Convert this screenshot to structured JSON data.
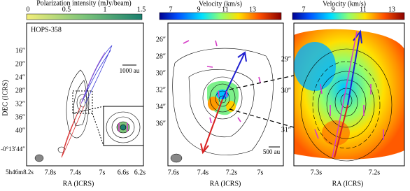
{
  "panels": [
    {
      "colorbar": {
        "label": "Polarization intensity (mJy/beam)",
        "ticks": [
          "0",
          "0.5",
          "1",
          "1.5"
        ]
      },
      "source": "HOPS-358",
      "scale_bar": "1000 au",
      "y_label": "DEC (ICRS)",
      "x_label": "RA (ICRS)",
      "y_ticks": [
        "16″",
        "20″",
        "24″",
        "28″",
        "32″",
        "36″",
        "40″",
        "-0°13′44″"
      ],
      "x_ticks": [
        "5h46m8.2s",
        "7.8s",
        "7.4s",
        "7s",
        "6.6s",
        "6.2s"
      ]
    },
    {
      "colorbar": {
        "label": "Velocity (km/s)",
        "ticks": [
          "7",
          "9",
          "11",
          "13"
        ]
      },
      "scale_bar": "500 au",
      "x_label": "RA (ICRS)",
      "y_ticks": [
        "26″",
        "28″",
        "30″",
        "32″",
        "34″",
        "36″"
      ],
      "x_ticks": [
        "7.6s",
        "7.4s",
        "7.2s",
        "7s"
      ]
    },
    {
      "colorbar": {
        "label": "Velocity (km/s)",
        "ticks": [
          "7",
          "9",
          "11",
          "13"
        ]
      },
      "x_label": "RA (ICRS)",
      "y_ticks": [
        "29″",
        "30″",
        "31″"
      ],
      "x_ticks": [
        "7.3s",
        "7.2s"
      ]
    }
  ]
}
